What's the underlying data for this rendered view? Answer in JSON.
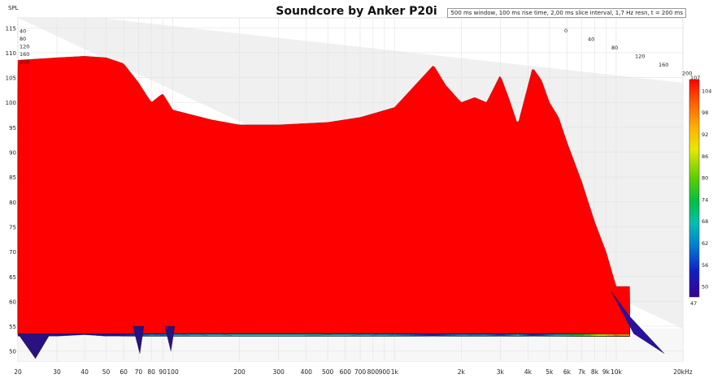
{
  "chart_data": {
    "type": "waterfall",
    "title": "Soundcore by Anker P20i",
    "info": "500 ms window, 100 ms rise time, 2,00 ms slice interval, 1,7 Hz resn, t = 200 ms",
    "ylabel": "SPL",
    "y_ticks": [
      115,
      110,
      105,
      100,
      95,
      90,
      85,
      80,
      75,
      70,
      65,
      60,
      55,
      50
    ],
    "x_ticks": [
      "20",
      "30",
      "40",
      "50",
      "60",
      "70",
      "80",
      "90",
      "100",
      "200",
      "300",
      "400",
      "500",
      "600",
      "700",
      "800",
      "900",
      "1k",
      "2k",
      "3k",
      "4k",
      "5k",
      "6k",
      "7k",
      "8k",
      "9k",
      "10k",
      "20kHz"
    ],
    "time_ticks_left": [
      "40",
      "80",
      "120",
      "160",
      "200"
    ],
    "time_ticks_right": [
      "0",
      "40",
      "80",
      "120",
      "160",
      "200"
    ],
    "colorbar_ticks": [
      "107",
      "104",
      "98",
      "92",
      "86",
      "80",
      "74",
      "68",
      "62",
      "56",
      "50",
      "47"
    ],
    "ylim": [
      48,
      117
    ],
    "xlim_hz": [
      20,
      20000
    ],
    "time_range_ms": [
      0,
      200
    ],
    "front_response": {
      "freq_hz": [
        20,
        30,
        40,
        50,
        60,
        70,
        80,
        90,
        100,
        150,
        200,
        300,
        500,
        700,
        1000,
        1300,
        1500,
        1700,
        2000,
        2300,
        2600,
        3000,
        3300,
        3600,
        4200,
        4600,
        5000,
        5500,
        6000,
        7000,
        8000,
        9000,
        10000
      ],
      "spl_db": [
        108.5,
        109.0,
        109.3,
        109.0,
        107.8,
        104.0,
        100.0,
        101.8,
        98.5,
        96.5,
        95.5,
        95.5,
        96.0,
        97.0,
        99.0,
        104.5,
        107.5,
        103.5,
        100.0,
        101.0,
        100.0,
        105.5,
        100.5,
        95.5,
        107.0,
        104.5,
        100.0,
        97.0,
        92.0,
        84.0,
        76.0,
        70.0,
        63.0
      ]
    }
  }
}
